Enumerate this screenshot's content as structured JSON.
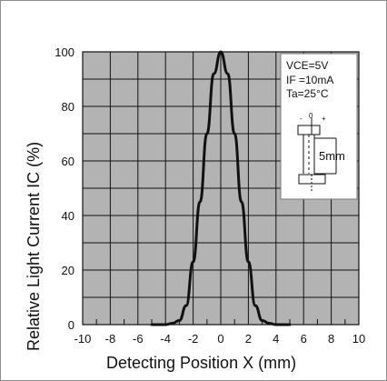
{
  "chart_data": {
    "type": "line",
    "title": "",
    "xlabel": "Detecting Position   X  (mm)",
    "ylabel": "Relative Light Current   IC  (%)",
    "xlim": [
      -10,
      10
    ],
    "ylim": [
      0,
      100
    ],
    "x_ticks": [
      "-10",
      "-8",
      "-6",
      "-4",
      "-2",
      "0",
      "2",
      "4",
      "6",
      "8",
      "10"
    ],
    "y_ticks": [
      "0",
      "20",
      "40",
      "60",
      "80",
      "100"
    ],
    "grid": true,
    "plot_background": "#b3b3b3",
    "line_color": "#111111",
    "series": [
      {
        "x": [
          -5,
          -4.5,
          -4,
          -3.5,
          -3,
          -2.5,
          -2,
          -1.5,
          -1,
          -0.5,
          0,
          0.5,
          1,
          1.5,
          2,
          2.5,
          3,
          3.5,
          4,
          4.5,
          5
        ],
        "y": [
          0,
          0,
          0,
          0.5,
          1.5,
          7,
          23,
          45,
          70,
          92,
          100,
          92,
          70,
          45,
          23,
          7,
          1.5,
          0.5,
          0,
          0,
          0
        ]
      }
    ],
    "annotations": {
      "condition_vce": "VCE=5V",
      "condition_if": "IF =10mA",
      "condition_ta": "Ta=25°C",
      "sensor_left_sign": "-",
      "sensor_center": "0",
      "sensor_right_sign": "+",
      "distance_label": "5mm"
    }
  }
}
